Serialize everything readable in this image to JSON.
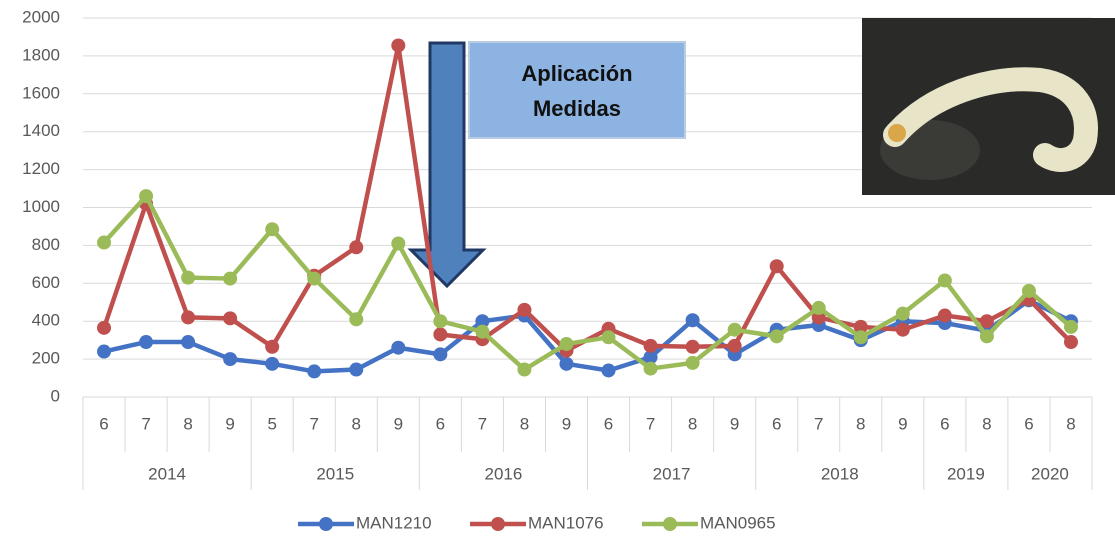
{
  "chart_data": {
    "type": "line",
    "groups": [
      {
        "label": "2014",
        "categories": [
          "6",
          "7",
          "8",
          "9"
        ]
      },
      {
        "label": "2015",
        "categories": [
          "5",
          "7",
          "8",
          "9"
        ]
      },
      {
        "label": "2016",
        "categories": [
          "6",
          "7",
          "8",
          "9"
        ]
      },
      {
        "label": "2017",
        "categories": [
          "6",
          "7",
          "8",
          "9"
        ]
      },
      {
        "label": "2018",
        "categories": [
          "6",
          "7",
          "8",
          "9"
        ]
      },
      {
        "label": "2019",
        "categories": [
          "6",
          "8"
        ]
      },
      {
        "label": "2020",
        "categories": [
          "6",
          "8"
        ]
      }
    ],
    "series": [
      {
        "name": "MAN1210",
        "color": "#4472c4",
        "values": [
          240,
          290,
          290,
          200,
          175,
          135,
          145,
          260,
          225,
          400,
          430,
          175,
          140,
          210,
          405,
          225,
          355,
          380,
          300,
          400,
          390,
          350,
          510,
          400
        ]
      },
      {
        "name": "MAN1076",
        "color": "#c0504d",
        "values": [
          365,
          1020,
          420,
          415,
          265,
          640,
          790,
          1855,
          330,
          305,
          460,
          245,
          360,
          270,
          265,
          270,
          690,
          420,
          370,
          355,
          430,
          400,
          515,
          290
        ]
      },
      {
        "name": "MAN0965",
        "color": "#9bbb59",
        "values": [
          815,
          1060,
          630,
          625,
          885,
          625,
          410,
          810,
          400,
          345,
          145,
          280,
          315,
          150,
          180,
          355,
          320,
          470,
          315,
          440,
          615,
          320,
          560,
          370
        ]
      }
    ],
    "annotation_lines": [
      "Aplicación",
      "Medidas"
    ],
    "ylim": [
      0,
      2000
    ],
    "yticks": [
      0,
      200,
      400,
      600,
      800,
      1000,
      1200,
      1400,
      1600,
      1800,
      2000
    ],
    "grid": true,
    "legend": "bottom"
  }
}
